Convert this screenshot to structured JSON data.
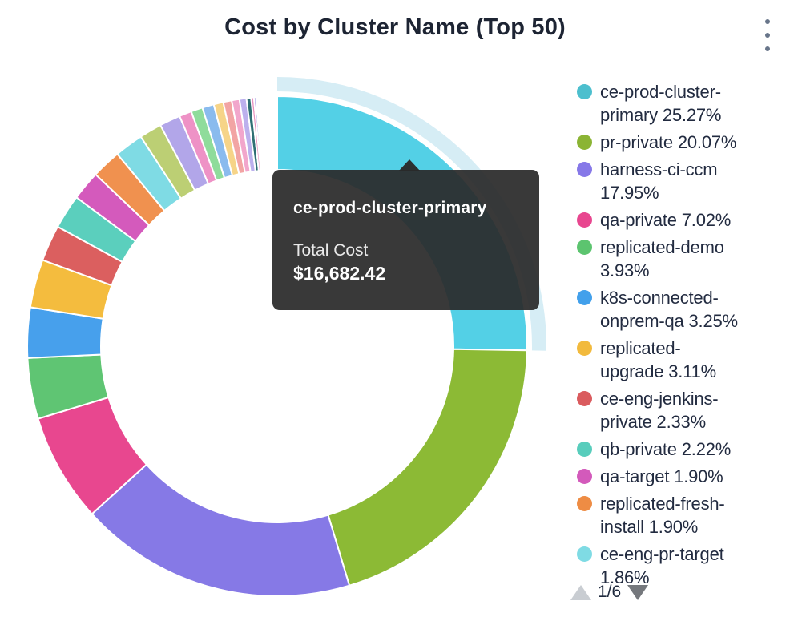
{
  "header": {
    "title": "Cost by Cluster Name (Top 50)"
  },
  "tooltip": {
    "name": "ce-prod-cluster-primary",
    "label": "Total Cost",
    "value": "$16,682.42"
  },
  "legend": {
    "items": [
      {
        "label": "ce-prod-cluster-primary 25.27%",
        "color": "#4cbfce"
      },
      {
        "label": "pr-private 20.07%",
        "color": "#8bb434"
      },
      {
        "label": "harness-ci-ccm 17.95%",
        "color": "#8678e8"
      },
      {
        "label": "qa-private 7.02%",
        "color": "#e8468f"
      },
      {
        "label": "replicated-demo 3.93%",
        "color": "#5cc46f"
      },
      {
        "label": "k8s-connected-onprem-qa 3.25%",
        "color": "#42a0eb"
      },
      {
        "label": "replicated-upgrade 3.11%",
        "color": "#f2ba3d"
      },
      {
        "label": "ce-eng-jenkins-private 2.33%",
        "color": "#da5b5e"
      },
      {
        "label": "qb-private 2.22%",
        "color": "#58cdbc"
      },
      {
        "label": "qa-target 1.90%",
        "color": "#d35abb"
      },
      {
        "label": "replicated-fresh-install 1.90%",
        "color": "#ee8c44"
      },
      {
        "label": "ce-eng-pr-target 1.86%",
        "color": "#7fdbe4"
      }
    ],
    "pagination": {
      "current": "1/6"
    }
  },
  "chart_data": {
    "type": "pie",
    "donut": true,
    "title": "Cost by Cluster Name (Top 50)",
    "direction": "clockwise",
    "start_angle_deg": 0,
    "legend_position": "right",
    "highlighted": {
      "name": "ce-prod-cluster-primary",
      "total_cost": "$16,682.42",
      "halo_color": "#d6edf5"
    },
    "segments": [
      {
        "name": "ce-prod-cluster-primary",
        "pct": 25.27,
        "color": "#53d0e6"
      },
      {
        "name": "pr-private",
        "pct": 20.07,
        "color": "#8cba35"
      },
      {
        "name": "harness-ci-ccm",
        "pct": 17.95,
        "color": "#8679e6"
      },
      {
        "name": "qa-private",
        "pct": 7.02,
        "color": "#e8478f"
      },
      {
        "name": "replicated-demo",
        "pct": 3.93,
        "color": "#5fc573"
      },
      {
        "name": "k8s-connected-onprem-qa",
        "pct": 3.25,
        "color": "#47a0ec"
      },
      {
        "name": "replicated-upgrade",
        "pct": 3.11,
        "color": "#f4bc3e"
      },
      {
        "name": "ce-eng-jenkins-private",
        "pct": 2.33,
        "color": "#db5f5f"
      },
      {
        "name": "qb-private",
        "pct": 2.22,
        "color": "#5bcfbd"
      },
      {
        "name": "qa-target",
        "pct": 1.9,
        "color": "#d45abc"
      },
      {
        "name": "replicated-fresh-install",
        "pct": 1.9,
        "color": "#f0914f"
      },
      {
        "name": "ce-eng-pr-target",
        "pct": 1.86,
        "color": "#7fdbe4"
      },
      {
        "name": "",
        "pct": 1.45,
        "color": "#bccf74"
      },
      {
        "name": "",
        "pct": 1.35,
        "color": "#b2a6e9"
      },
      {
        "name": "",
        "pct": 0.8,
        "color": "#ee92c6"
      },
      {
        "name": "",
        "pct": 0.75,
        "color": "#8fdc9b"
      },
      {
        "name": "",
        "pct": 0.75,
        "color": "#8abbee"
      },
      {
        "name": "",
        "pct": 0.62,
        "color": "#f6d488"
      },
      {
        "name": "",
        "pct": 0.55,
        "color": "#f2a4a4"
      },
      {
        "name": "",
        "pct": 0.5,
        "color": "#f2a6cc"
      },
      {
        "name": "",
        "pct": 0.45,
        "color": "#bcb0ed"
      },
      {
        "name": "",
        "pct": 0.3,
        "color": "#2f6f74"
      },
      {
        "name": "",
        "pct": 0.18,
        "color": "#e891be"
      },
      {
        "name": "",
        "pct": 0.13,
        "color": "#7c6fd8"
      },
      {
        "name": "",
        "pct": 0.1,
        "color": "#2f6f74"
      },
      {
        "name": "",
        "pct": 0.08,
        "color": "#9a8fe0"
      },
      {
        "name": "",
        "pct": 0.07,
        "color": "#c0589b"
      },
      {
        "name": "",
        "pct": 0.06,
        "color": "#8078dd"
      },
      {
        "name": "",
        "pct": 0.05,
        "color": "#5bcfbd"
      },
      {
        "name": "",
        "pct": 0.04,
        "color": "#e891be"
      },
      {
        "name": "",
        "pct": 0.04,
        "color": "#b2a6e9"
      },
      {
        "name": "",
        "pct": 0.03,
        "color": "#2f6f74"
      },
      {
        "name": "",
        "pct": 0.03,
        "color": "#8078dd"
      }
    ]
  }
}
